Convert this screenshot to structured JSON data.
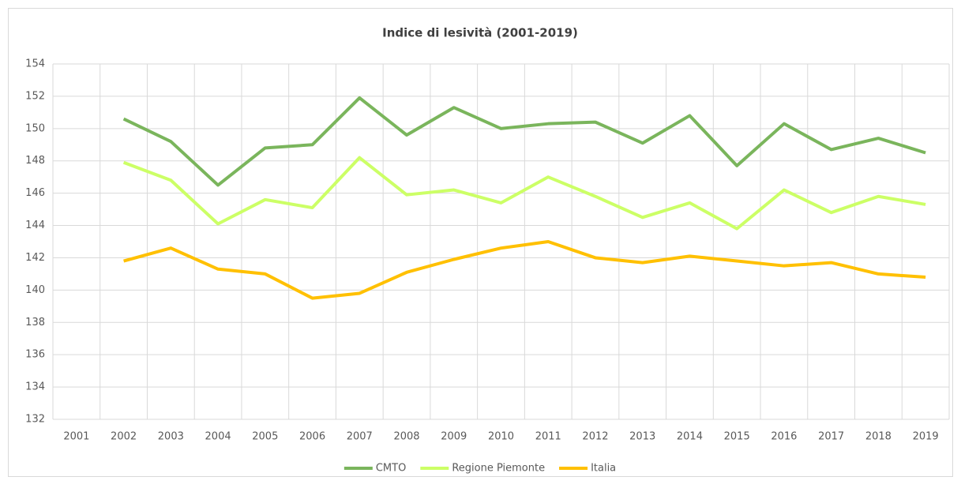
{
  "chart_data": {
    "type": "line",
    "title": "Indice di lesività (2001-2019)",
    "categories": [
      "2001",
      "2002",
      "2003",
      "2004",
      "2005",
      "2006",
      "2007",
      "2008",
      "2009",
      "2010",
      "2011",
      "2012",
      "2013",
      "2014",
      "2015",
      "2016",
      "2017",
      "2018",
      "2019"
    ],
    "series": [
      {
        "name": "CMTO",
        "color": "#7ab55c",
        "values": [
          null,
          150.6,
          149.2,
          146.5,
          148.8,
          149.0,
          151.9,
          149.6,
          151.3,
          150.0,
          150.3,
          150.4,
          149.1,
          150.8,
          147.7,
          150.3,
          148.7,
          149.4,
          148.5
        ]
      },
      {
        "name": "Regione Piemonte",
        "color": "#ccff66",
        "values": [
          null,
          147.9,
          146.8,
          144.1,
          145.6,
          145.1,
          148.2,
          145.9,
          146.2,
          145.4,
          147.0,
          145.8,
          144.5,
          145.4,
          143.8,
          146.2,
          144.8,
          145.8,
          145.3
        ]
      },
      {
        "name": "Italia",
        "color": "#ffc000",
        "values": [
          null,
          141.8,
          142.6,
          141.3,
          141.0,
          139.5,
          139.8,
          141.1,
          141.9,
          142.6,
          143.0,
          142.0,
          141.7,
          142.1,
          141.8,
          141.5,
          141.7,
          141.0,
          140.8
        ]
      }
    ],
    "ylim": [
      132,
      154
    ],
    "yticks": [
      132,
      134,
      136,
      138,
      140,
      142,
      144,
      146,
      148,
      150,
      152,
      154
    ],
    "grid": true,
    "legend": "bottom"
  }
}
